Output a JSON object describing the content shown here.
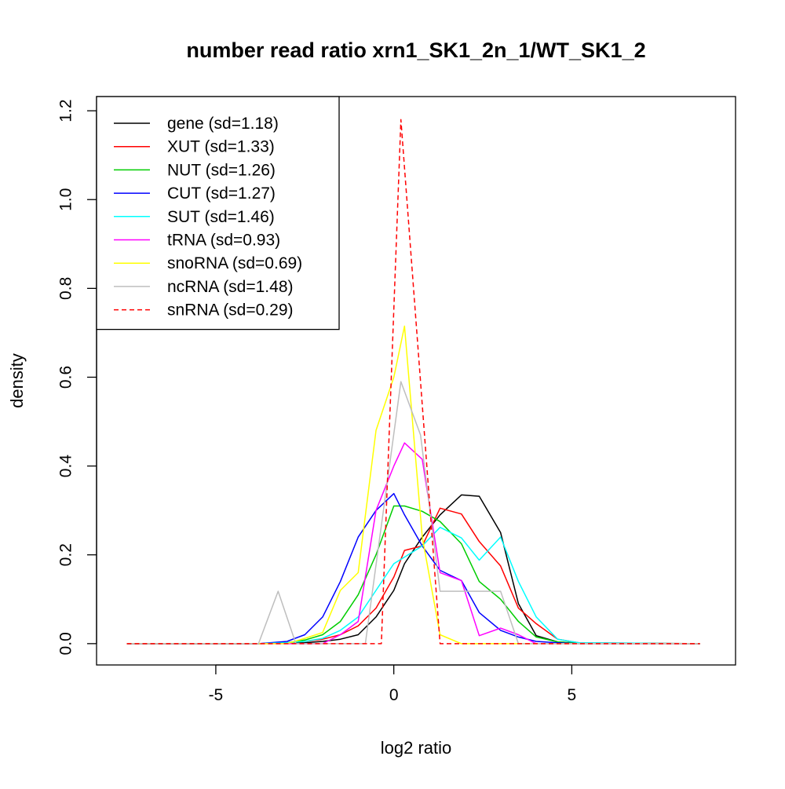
{
  "chart_data": {
    "type": "line",
    "title": "number read ratio xrn1_SK1_2n_1/WT_SK1_2",
    "xlabel": "log2 ratio",
    "ylabel": "density",
    "xlim": [
      -8.35,
      9.6
    ],
    "ylim": [
      -0.048,
      1.232
    ],
    "x_ticks": [
      -5,
      0,
      5
    ],
    "x_tick_labels": [
      "-5",
      "0",
      "5"
    ],
    "y_ticks": [
      0.0,
      0.2,
      0.4,
      0.6,
      0.8,
      1.0,
      1.2
    ],
    "y_tick_labels": [
      "0.0",
      "0.2",
      "0.4",
      "0.6",
      "0.8",
      "1.0",
      "1.2"
    ],
    "grid": false,
    "legend_position": "top-left",
    "series": [
      {
        "name": "gene (sd=1.18)",
        "color": "#000000",
        "dash": "solid",
        "x": [
          -7.5,
          -3.8,
          -3.0,
          -2.5,
          -2.0,
          -1.5,
          -1.0,
          -0.5,
          0.0,
          0.3,
          0.8,
          1.3,
          1.9,
          2.4,
          3.0,
          3.5,
          4.0,
          4.6,
          5.2,
          8.6
        ],
        "y": [
          0.0,
          0.0,
          0.001,
          0.002,
          0.005,
          0.01,
          0.02,
          0.06,
          0.12,
          0.18,
          0.24,
          0.29,
          0.335,
          0.332,
          0.25,
          0.09,
          0.018,
          0.004,
          0.001,
          0.0
        ]
      },
      {
        "name": "XUT (sd=1.33)",
        "color": "#ff0000",
        "dash": "solid",
        "x": [
          -7.5,
          -3.8,
          -3.0,
          -2.5,
          -2.0,
          -1.5,
          -1.0,
          -0.5,
          0.0,
          0.3,
          0.8,
          1.3,
          1.9,
          2.4,
          3.0,
          3.5,
          4.0,
          4.6,
          5.2,
          8.6
        ],
        "y": [
          0.0,
          0.0,
          0.002,
          0.005,
          0.01,
          0.02,
          0.04,
          0.08,
          0.15,
          0.21,
          0.22,
          0.305,
          0.292,
          0.23,
          0.175,
          0.08,
          0.045,
          0.01,
          0.002,
          0.0
        ]
      },
      {
        "name": "NUT (sd=1.26)",
        "color": "#00cd00",
        "dash": "solid",
        "x": [
          -7.5,
          -3.8,
          -3.0,
          -2.5,
          -2.0,
          -1.5,
          -1.0,
          -0.5,
          0.0,
          0.3,
          0.8,
          1.3,
          1.9,
          2.4,
          3.0,
          3.5,
          4.0,
          4.6,
          5.2,
          8.6
        ],
        "y": [
          0.0,
          0.0,
          0.002,
          0.008,
          0.02,
          0.05,
          0.11,
          0.2,
          0.31,
          0.31,
          0.298,
          0.275,
          0.225,
          0.14,
          0.1,
          0.05,
          0.015,
          0.004,
          0.001,
          0.0
        ]
      },
      {
        "name": "CUT (sd=1.27)",
        "color": "#0000ff",
        "dash": "solid",
        "x": [
          -7.5,
          -3.8,
          -3.0,
          -2.5,
          -2.0,
          -1.5,
          -1.0,
          -0.5,
          0.0,
          0.3,
          0.8,
          1.3,
          1.9,
          2.4,
          3.0,
          3.5,
          4.0,
          4.6,
          5.2,
          8.6
        ],
        "y": [
          0.0,
          0.0,
          0.005,
          0.02,
          0.06,
          0.14,
          0.24,
          0.3,
          0.338,
          0.29,
          0.22,
          0.165,
          0.142,
          0.07,
          0.03,
          0.015,
          0.005,
          0.002,
          0.0,
          0.0
        ]
      },
      {
        "name": "SUT (sd=1.46)",
        "color": "#00ffff",
        "dash": "solid",
        "x": [
          -7.5,
          -3.8,
          -3.0,
          -2.5,
          -2.0,
          -1.5,
          -1.0,
          -0.5,
          0.0,
          0.3,
          0.8,
          1.3,
          1.9,
          2.4,
          3.0,
          3.5,
          4.0,
          4.6,
          5.2,
          8.6
        ],
        "y": [
          0.0,
          0.0,
          0.002,
          0.005,
          0.012,
          0.03,
          0.06,
          0.12,
          0.18,
          0.195,
          0.22,
          0.262,
          0.238,
          0.188,
          0.24,
          0.14,
          0.06,
          0.01,
          0.002,
          0.0
        ]
      },
      {
        "name": "tRNA (sd=0.93)",
        "color": "#ff00ff",
        "dash": "solid",
        "x": [
          -7.5,
          -3.8,
          -3.0,
          -2.5,
          -2.0,
          -1.5,
          -1.0,
          -0.5,
          0.0,
          0.3,
          0.8,
          1.3,
          1.9,
          2.4,
          3.0,
          3.5,
          4.0,
          4.6,
          5.2,
          8.6
        ],
        "y": [
          0.0,
          0.0,
          0.0,
          0.0,
          0.0,
          0.02,
          0.05,
          0.3,
          0.4,
          0.452,
          0.415,
          0.16,
          0.142,
          0.018,
          0.035,
          0.02,
          0.0,
          0.0,
          0.0,
          0.0
        ]
      },
      {
        "name": "snoRNA (sd=0.69)",
        "color": "#ffff00",
        "dash": "solid",
        "x": [
          -7.5,
          -3.8,
          -3.0,
          -2.5,
          -2.0,
          -1.5,
          -1.0,
          -0.5,
          0.0,
          0.3,
          0.8,
          1.3,
          1.9,
          2.4,
          3.0,
          3.5,
          4.0,
          4.6,
          5.2,
          8.6
        ],
        "y": [
          0.0,
          0.0,
          0.0,
          0.012,
          0.025,
          0.12,
          0.16,
          0.48,
          0.6,
          0.715,
          0.24,
          0.02,
          0.0,
          0.0,
          0.0,
          0.0,
          0.0,
          0.0,
          0.0,
          0.0
        ]
      },
      {
        "name": "ncRNA (sd=1.48)",
        "color": "#bebebe",
        "dash": "solid",
        "x": [
          -7.5,
          -3.8,
          -3.25,
          -2.75,
          -1.3,
          -0.8,
          0.2,
          0.75,
          1.3,
          1.9,
          2.4,
          3.0,
          3.5,
          8.6
        ],
        "y": [
          0.0,
          0.0,
          0.118,
          0.0,
          0.0,
          0.0,
          0.59,
          0.47,
          0.118,
          0.118,
          0.118,
          0.118,
          0.0,
          0.0
        ]
      },
      {
        "name": "snRNA (sd=0.29)",
        "color": "#ff0000",
        "dash": "dashed",
        "x": [
          -7.5,
          -0.35,
          0.2,
          0.75,
          1.3,
          8.6
        ],
        "y": [
          0.0,
          0.0,
          1.18,
          0.59,
          0.0,
          0.0
        ]
      }
    ]
  }
}
